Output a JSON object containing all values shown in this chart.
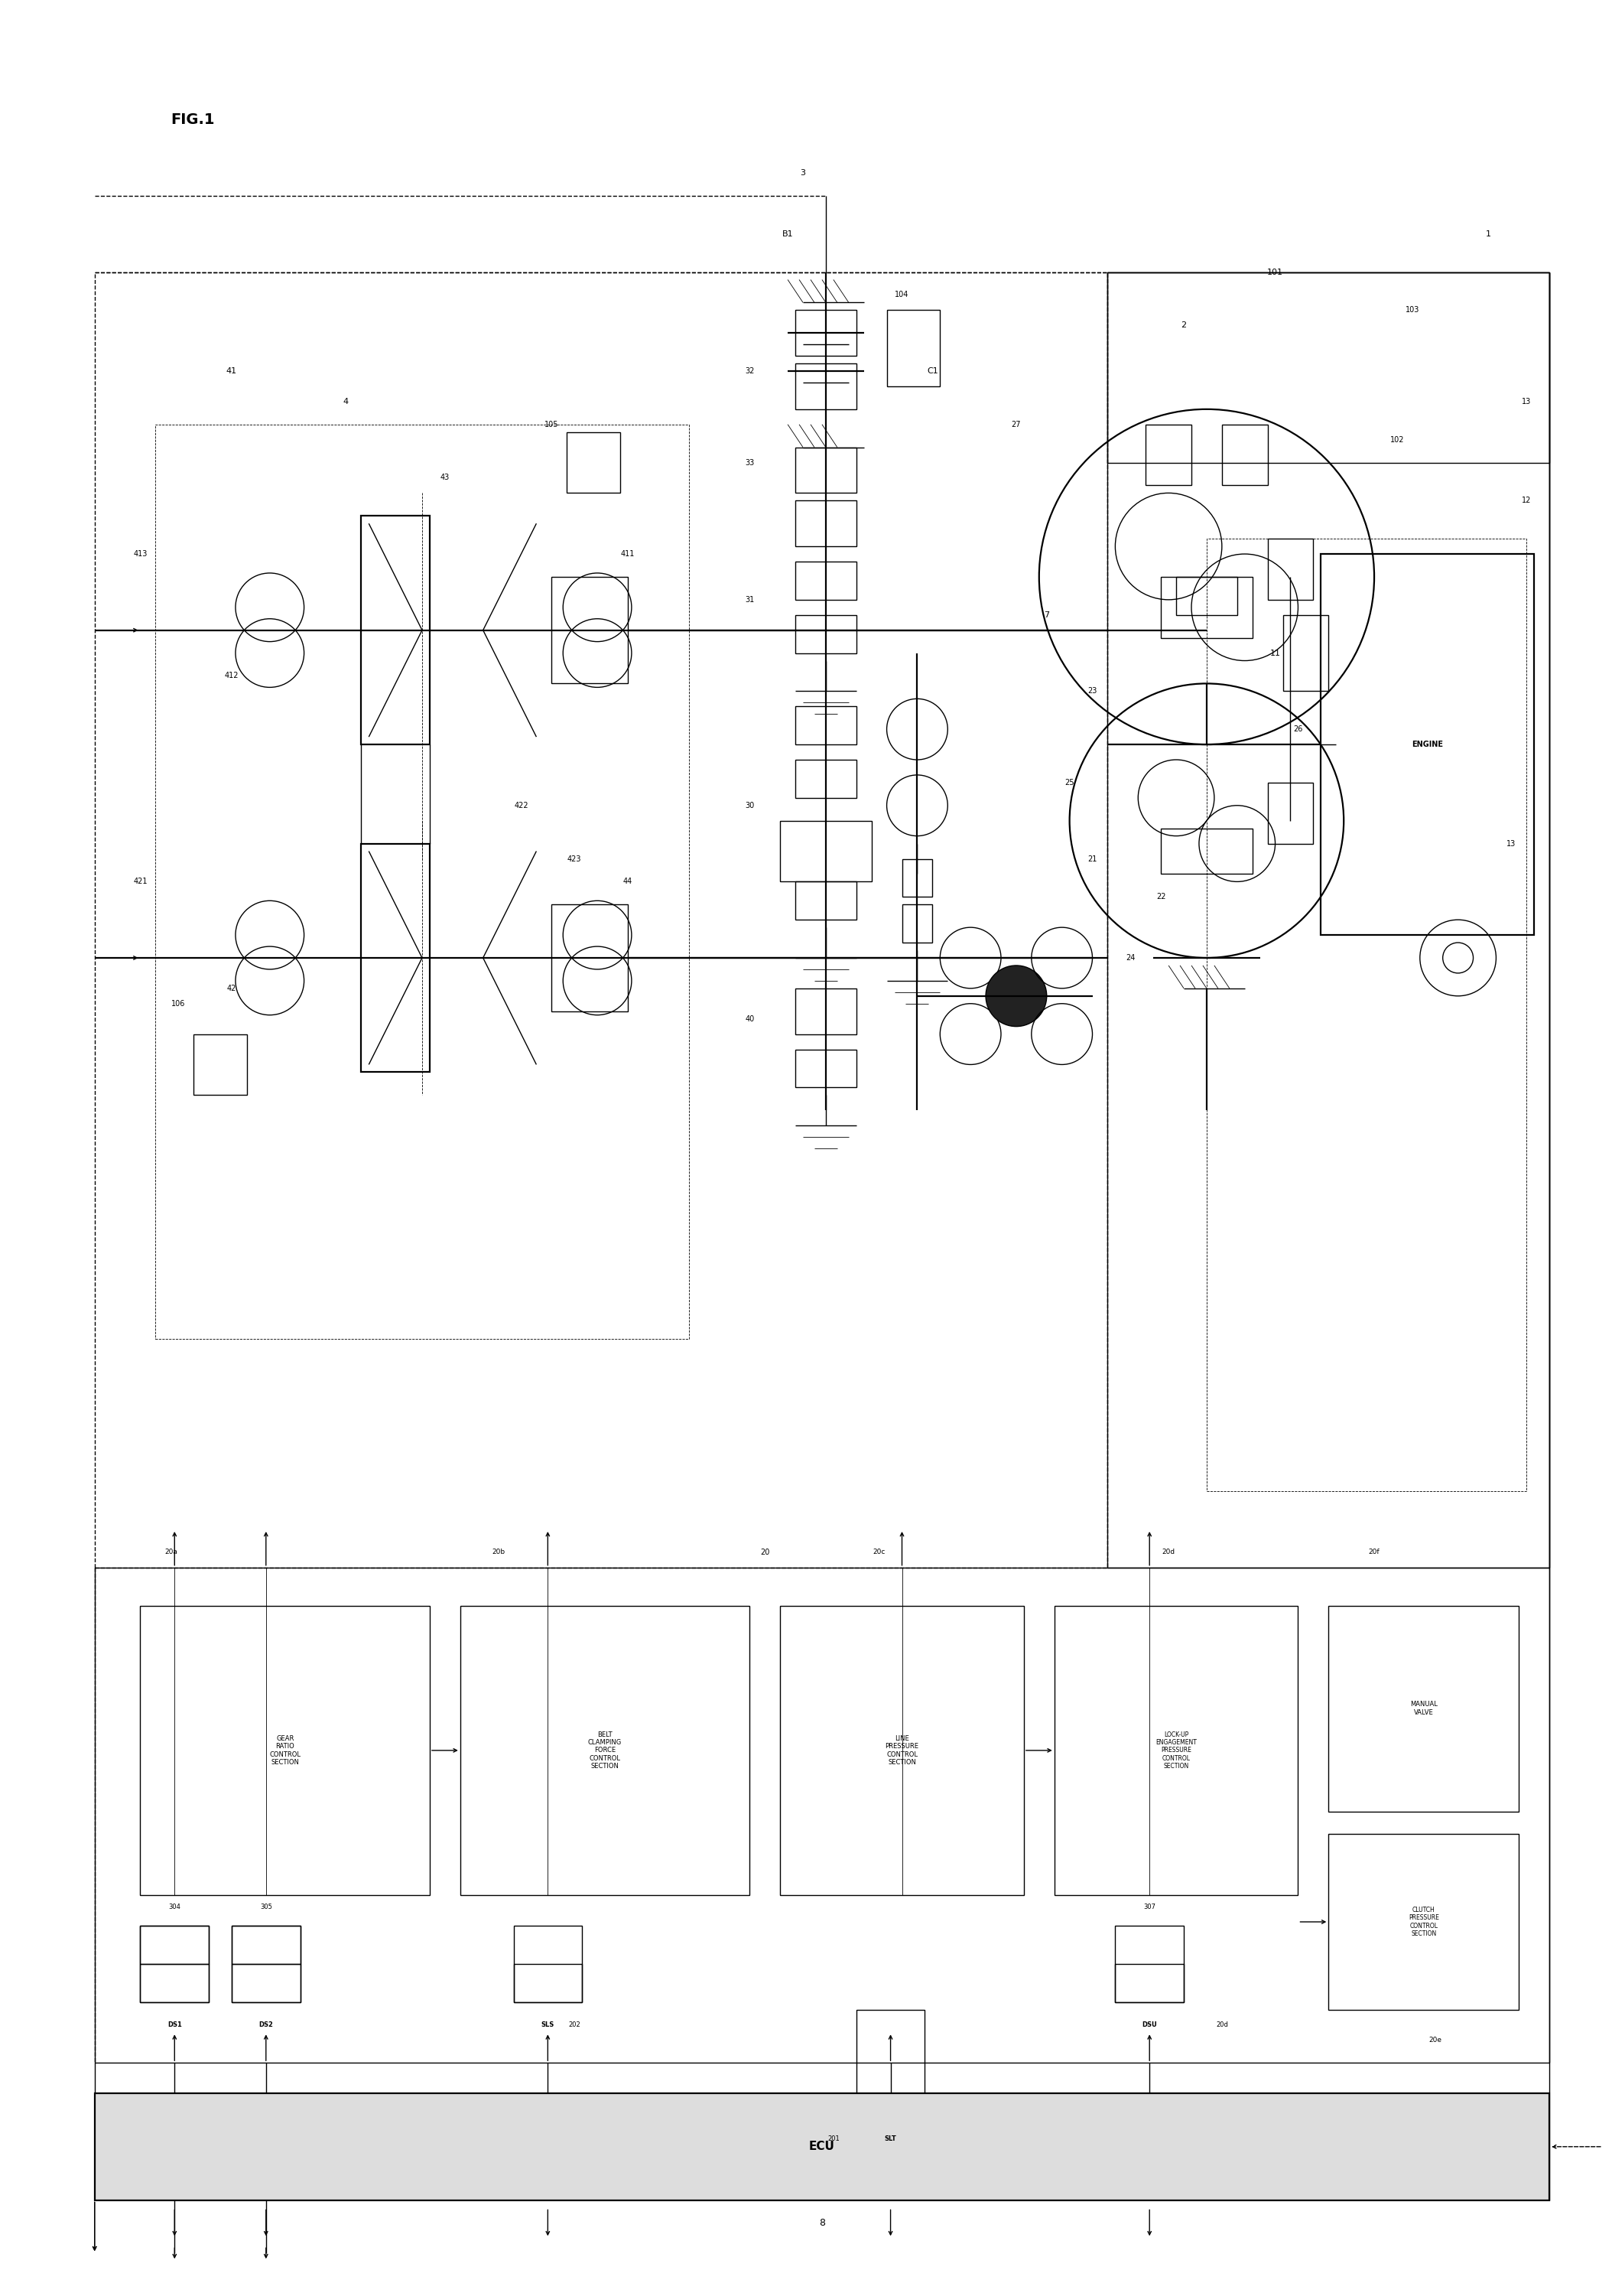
{
  "bg_color": "#ffffff",
  "fig_width": 21.08,
  "fig_height": 30.01,
  "title": "FIG.1",
  "labels": {
    "gear_ratio": "GEAR\nRATIO\nCONTROL\nSECTION",
    "belt_clamping": "BELT\nCLAMPING\nFORCE\nCONTROL\nSECTION",
    "line_pressure": "LINE\nPRESSURE\nCONTROL\nSECTION",
    "lockup": "LOCK-UP\nENGAGEMENT\nPRESSURE\nCONTROL\nSECTION",
    "manual_valve": "MANUAL\nVALVE",
    "clutch_pressure": "CLUTCH\nPRESSURE\nCONTROL\nSECTION",
    "ecu": "ECU",
    "engine": "ENGINE",
    "ds1": "DS1",
    "ds2": "DS2",
    "sls": "SLS",
    "slt": "SLT",
    "dsu": "DSU"
  }
}
